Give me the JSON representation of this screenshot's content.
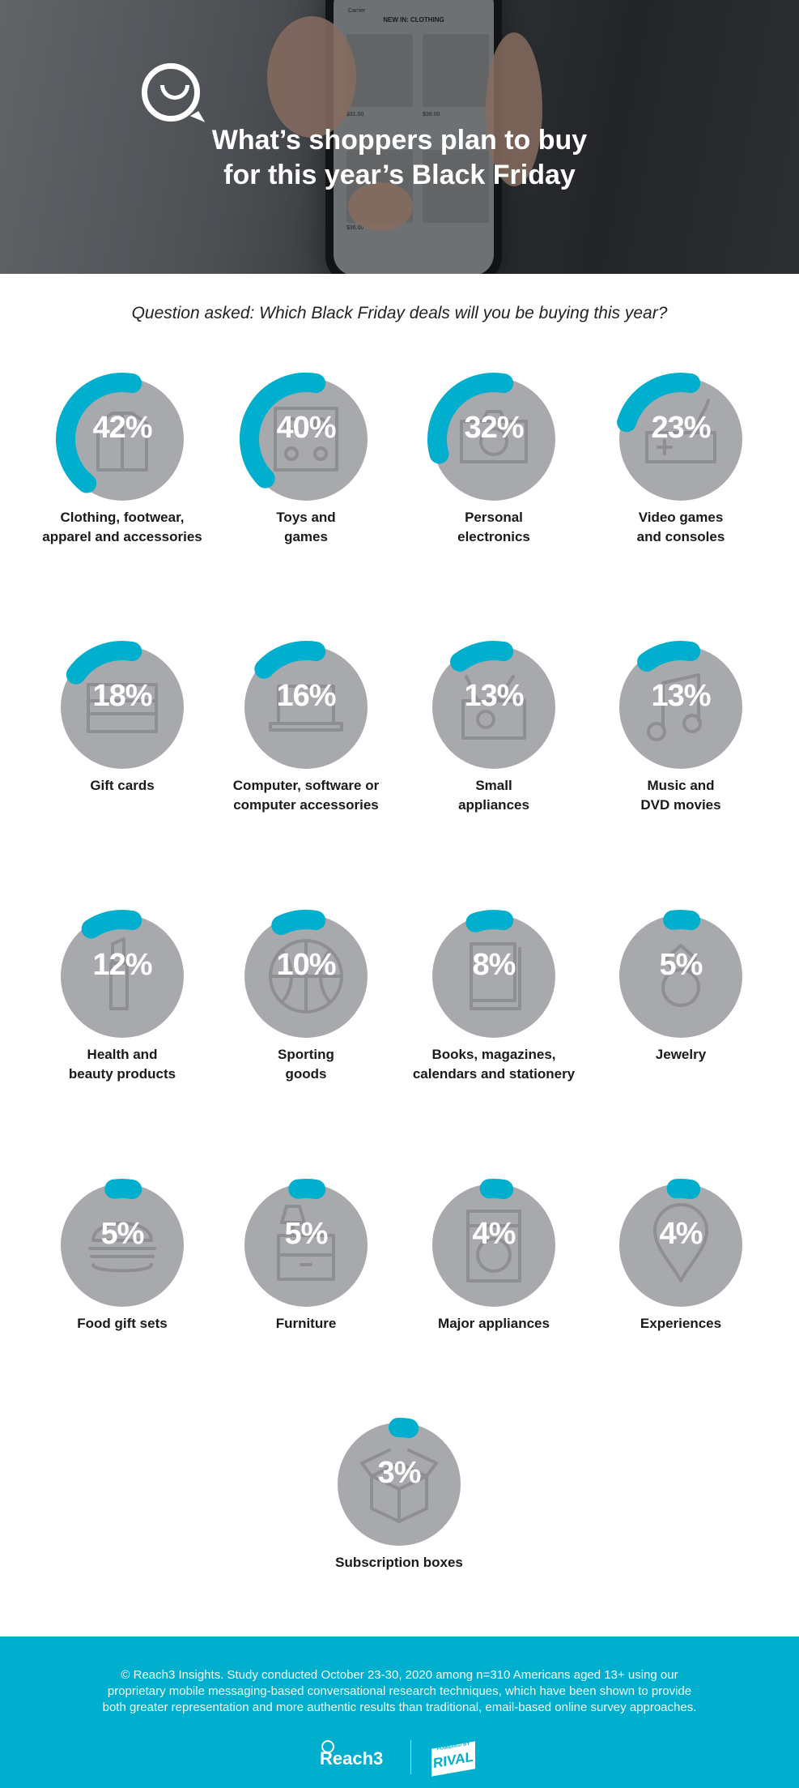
{
  "header": {
    "title_line1": "What’s shoppers plan to buy",
    "title_line2": "for this year’s Black Friday",
    "phone_category": "NEW IN: CLOTHING",
    "phone_status": "Carrier",
    "phone_prices": [
      "$31.00",
      "$38.00",
      "$36.00"
    ]
  },
  "question": "Question asked: Which Black Friday deals will you be buying this year?",
  "colors": {
    "accent": "#00aecd",
    "circle": "#a8a9ad",
    "icon": "#8e8f93"
  },
  "chart_data": {
    "type": "bar",
    "title": "What’s shoppers plan to buy for this year’s Black Friday",
    "unit": "%",
    "items": [
      {
        "label1": "Clothing, footwear,",
        "label2": "apparel and accessories",
        "value": 42,
        "value_text": "42%",
        "icon": "jacket-icon"
      },
      {
        "label1": "Toys and",
        "label2": "games",
        "value": 40,
        "value_text": "40%",
        "icon": "dice-icon"
      },
      {
        "label1": "Personal",
        "label2": "electronics",
        "value": 32,
        "value_text": "32%",
        "icon": "camera-icon"
      },
      {
        "label1": "Video games",
        "label2": "and consoles",
        "value": 23,
        "value_text": "23%",
        "icon": "gamepad-icon"
      },
      {
        "label1": "Gift cards",
        "label2": "",
        "value": 18,
        "value_text": "18%",
        "icon": "gift-card-icon"
      },
      {
        "label1": "Computer, software or",
        "label2": "computer accessories",
        "value": 16,
        "value_text": "16%",
        "icon": "laptop-icon"
      },
      {
        "label1": "Small",
        "label2": "appliances",
        "value": 13,
        "value_text": "13%",
        "icon": "radio-icon"
      },
      {
        "label1": "Music and",
        "label2": "DVD movies",
        "value": 13,
        "value_text": "13%",
        "icon": "music-note-icon"
      },
      {
        "label1": "Health and",
        "label2": "beauty products",
        "value": 12,
        "value_text": "12%",
        "icon": "lipstick-icon"
      },
      {
        "label1": "Sporting",
        "label2": "goods",
        "value": 10,
        "value_text": "10%",
        "icon": "basketball-icon"
      },
      {
        "label1": "Books, magazines,",
        "label2": "calendars and stationery",
        "value": 8,
        "value_text": "8%",
        "icon": "book-icon"
      },
      {
        "label1": "Jewelry",
        "label2": "",
        "value": 5,
        "value_text": "5%",
        "icon": "ring-icon"
      },
      {
        "label1": "Food gift sets",
        "label2": "",
        "value": 5,
        "value_text": "5%",
        "icon": "burger-icon"
      },
      {
        "label1": "Furniture",
        "label2": "",
        "value": 5,
        "value_text": "5%",
        "icon": "lamp-table-icon"
      },
      {
        "label1": "Major appliances",
        "label2": "",
        "value": 4,
        "value_text": "4%",
        "icon": "washing-machine-icon"
      },
      {
        "label1": "Experiences",
        "label2": "",
        "value": 4,
        "value_text": "4%",
        "icon": "map-pin-icon"
      },
      {
        "label1": "Subscription boxes",
        "label2": "",
        "value": 3,
        "value_text": "3%",
        "icon": "box-icon"
      }
    ]
  },
  "footer": {
    "line1": "© Reach3 Insights. Study conducted October 23-30, 2020 among n=310 Americans aged 13+ using our",
    "line2": "proprietary mobile messaging-based conversational research techniques, which have been shown to provide",
    "line3": "both greater representation and more authentic results than traditional, email-based online survey approaches.",
    "brand": "Reach3",
    "partner_top": "POWERED BY",
    "partner": "RIVAL"
  }
}
